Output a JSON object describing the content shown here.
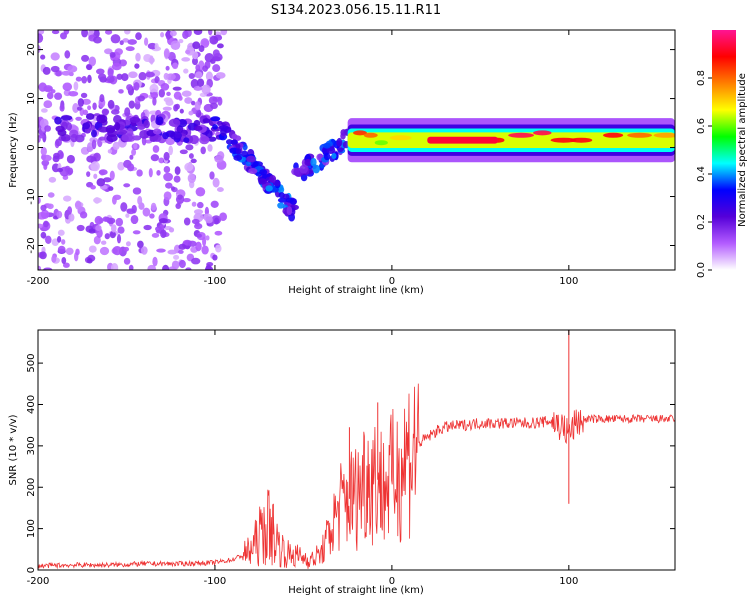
{
  "figure": {
    "title": "S134.2023.056.15.11.R11"
  },
  "chart_data": [
    {
      "type": "heatmap",
      "title": "S134.2023.056.15.11.R11",
      "xlabel": "Height of straight line (km)",
      "ylabel": "Frequency (Hz)",
      "xlim": [
        -200,
        160
      ],
      "ylim": [
        -25,
        24
      ],
      "xticks": [
        -200,
        -100,
        0,
        100
      ],
      "yticks": [
        -20,
        -10,
        0,
        10,
        20
      ],
      "xtick_labels": [
        "-200",
        "-100",
        "0",
        "100"
      ],
      "ytick_labels": [
        "-20",
        "-10",
        "0",
        "10",
        "20"
      ],
      "colorbar": {
        "label": "Normalized spectral amplitude",
        "range": [
          0.0,
          1.0
        ],
        "ticks": [
          0.0,
          0.2,
          0.4,
          0.6,
          0.8
        ],
        "tick_labels": [
          "0.0",
          "0.2",
          "0.4",
          "0.6",
          "0.8"
        ],
        "colormap": [
          "#ffffff",
          "#b35cff",
          "#5500d9",
          "#0000ff",
          "#00ffff",
          "#00ff00",
          "#ffff00",
          "#ff7f00",
          "#ff0000",
          "#ff1493"
        ]
      },
      "features": [
        {
          "x_range": [
            -200,
            -95
          ],
          "frequency_center": 4,
          "description": "scattered low-amplitude noise with band near 4 Hz"
        },
        {
          "x_range": [
            -100,
            -55
          ],
          "frequency_start": 5,
          "frequency_end": -13,
          "amplitude": 0.35
        },
        {
          "x_range": [
            -55,
            -25
          ],
          "frequency_start": -2,
          "frequency_end": 2,
          "amplitude": 0.4
        },
        {
          "x_range": [
            -25,
            160
          ],
          "frequency_center": 1.5,
          "amplitude": 0.9
        }
      ]
    },
    {
      "type": "line",
      "xlabel": "Height of straight line (km)",
      "ylabel": "SNR (10 * v/v)",
      "xlim": [
        -200,
        160
      ],
      "ylim": [
        0,
        580
      ],
      "xticks": [
        -200,
        -100,
        0,
        100
      ],
      "yticks": [
        0,
        100,
        200,
        300,
        400,
        500
      ],
      "xtick_labels": [
        "-200",
        "-100",
        "0",
        "100"
      ],
      "ytick_labels": [
        "0",
        "100",
        "200",
        "300",
        "400",
        "500"
      ],
      "color": "#ee3333",
      "series": [
        {
          "x": [
            -200,
            -180,
            -160,
            -140,
            -120,
            -100,
            -90,
            -80,
            -75,
            -70,
            -65,
            -60,
            -55,
            -50,
            -45,
            -40,
            -35,
            -30,
            -25,
            -20,
            -15,
            -10,
            -5,
            0,
            5,
            10,
            15,
            20,
            25,
            30,
            40,
            50,
            60,
            70,
            80,
            90,
            95,
            100,
            105,
            110,
            120,
            130,
            140,
            150,
            160
          ],
          "y": [
            10,
            12,
            12,
            15,
            15,
            18,
            25,
            45,
            80,
            110,
            70,
            40,
            35,
            30,
            25,
            40,
            90,
            150,
            170,
            180,
            230,
            230,
            200,
            220,
            250,
            290,
            305,
            320,
            335,
            345,
            350,
            355,
            355,
            355,
            355,
            360,
            350,
            330,
            360,
            365,
            365,
            365,
            365,
            365,
            365
          ]
        }
      ],
      "spikes": [
        {
          "x": -67,
          "y": 160
        },
        {
          "x": -24,
          "y": 345
        },
        {
          "x": -8,
          "y": 405
        },
        {
          "x": 100,
          "y": 580
        },
        {
          "x": 100,
          "y": 160
        }
      ]
    }
  ]
}
